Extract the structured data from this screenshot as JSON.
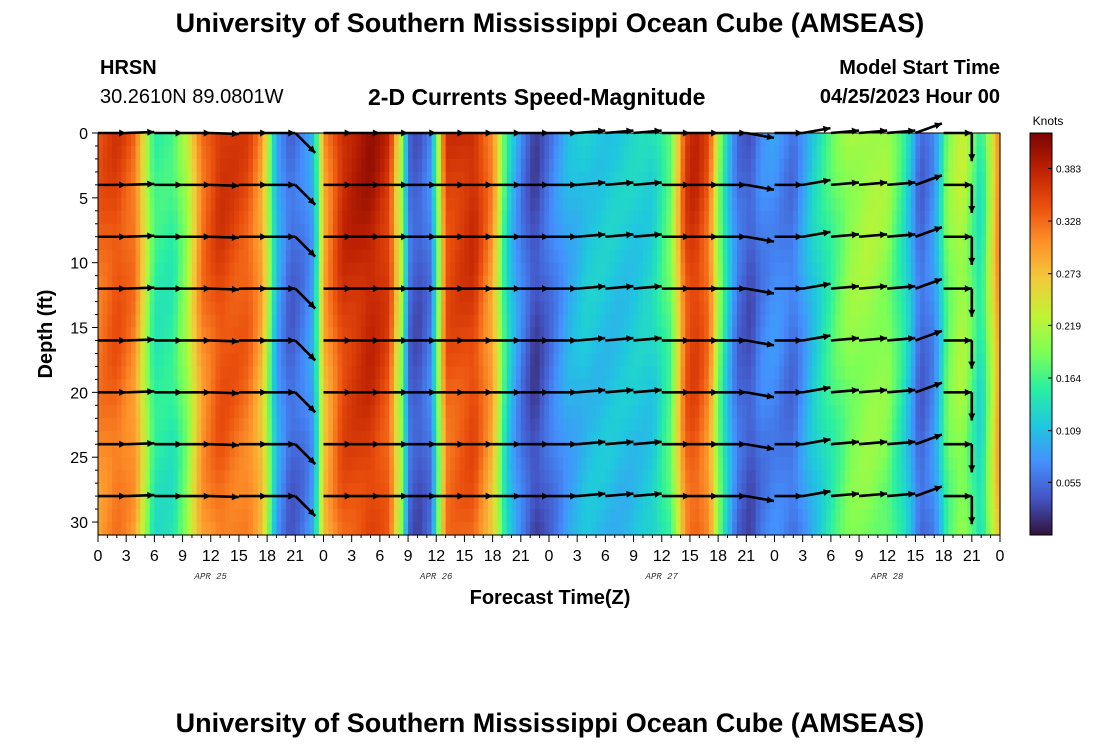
{
  "header": {
    "title": "University of Southern Mississippi Ocean Cube (AMSEAS)",
    "station": "HRSN",
    "coords": "30.2610N  89.0801W",
    "subtitle": "2-D Currents Speed-Magnitude",
    "model_start_label": "Model Start Time",
    "model_start": "04/25/2023 Hour 00"
  },
  "footer": {
    "title": "University of Southern Mississippi Ocean Cube (AMSEAS)"
  },
  "colors": {
    "scale": [
      "#30123b",
      "#4454c4",
      "#4490fe",
      "#1fc8de",
      "#29efa2",
      "#7dff56",
      "#c1f334",
      "#f1ca3a",
      "#fe922a",
      "#ea4f0d",
      "#be2102",
      "#7a0403"
    ]
  },
  "chart_data": {
    "type": "heatmap",
    "xlabel": "Forecast Time(Z)",
    "ylabel": "Depth (ft)",
    "x_range": [
      0,
      96
    ],
    "y_range": [
      0,
      31
    ],
    "x_tick_labels": [
      "0",
      "3",
      "6",
      "9",
      "12",
      "15",
      "18",
      "21",
      "0",
      "3",
      "6",
      "9",
      "12",
      "15",
      "18",
      "21",
      "0",
      "3",
      "6",
      "9",
      "12",
      "15",
      "18",
      "21",
      "0",
      "3",
      "6",
      "9",
      "12",
      "15",
      "18",
      "21",
      "0"
    ],
    "y_ticks": [
      0,
      5,
      10,
      15,
      20,
      25,
      30
    ],
    "y_tick_labels": [
      "0",
      "5",
      "10",
      "15",
      "20",
      "25",
      "30"
    ],
    "days": [
      {
        "label": "APR 25",
        "hour": 12
      },
      {
        "label": "APR 26",
        "hour": 36
      },
      {
        "label": "APR 27",
        "hour": 60
      },
      {
        "label": "APR 28",
        "hour": 84
      }
    ],
    "colorbar": {
      "title": "Knots",
      "tick_values": [
        0.383,
        0.328,
        0.273,
        0.219,
        0.164,
        0.109,
        0.055
      ],
      "tick_labels": [
        "0.383",
        "0.328",
        "0.273",
        "0.219",
        "0.164",
        "0.109",
        "0.055"
      ],
      "vmin": 0.0,
      "vmax": 0.42
    },
    "speed_profile": {
      "hours": [
        0,
        2,
        4,
        5,
        6,
        8,
        9.5,
        11,
        13,
        16,
        17.5,
        19,
        20.5,
        22,
        23,
        24,
        26,
        29,
        31,
        32.5,
        33,
        34,
        35.5,
        37,
        40,
        42,
        43.5,
        45,
        46.5,
        48,
        50,
        52,
        56,
        59,
        61,
        62.5,
        63.5,
        65,
        66.5,
        68,
        69.5,
        70.5,
        72,
        74,
        76,
        78,
        80,
        82,
        84,
        86,
        87.5,
        89,
        90.5,
        92,
        94,
        96
      ],
      "values": [
        0.34,
        0.36,
        0.33,
        0.24,
        0.16,
        0.16,
        0.22,
        0.33,
        0.37,
        0.35,
        0.3,
        0.1,
        0.05,
        0.07,
        0.1,
        0.3,
        0.38,
        0.4,
        0.37,
        0.19,
        0.06,
        0.04,
        0.07,
        0.36,
        0.38,
        0.31,
        0.14,
        0.07,
        0.03,
        0.06,
        0.1,
        0.12,
        0.12,
        0.13,
        0.19,
        0.36,
        0.38,
        0.34,
        0.16,
        0.06,
        0.04,
        0.07,
        0.08,
        0.06,
        0.12,
        0.17,
        0.21,
        0.22,
        0.21,
        0.14,
        0.05,
        0.08,
        0.2,
        0.23,
        0.14,
        0.33
      ]
    },
    "arrow_depths": [
      0,
      4,
      8,
      12,
      16,
      20,
      24,
      28
    ],
    "arrow_hours": [
      0,
      3,
      6,
      9,
      12,
      15,
      18,
      21,
      24,
      27,
      30,
      33,
      36,
      39,
      42,
      45,
      48,
      51,
      54,
      57,
      60,
      63,
      66,
      69,
      72,
      75,
      78,
      81,
      84,
      87,
      90,
      93,
      96
    ],
    "arrow_directions_deg": [
      0,
      2,
      0,
      0,
      -2,
      0,
      0,
      -45,
      0,
      0,
      0,
      0,
      0,
      0,
      0,
      0,
      0,
      5,
      5,
      5,
      0,
      0,
      0,
      -10,
      0,
      10,
      5,
      5,
      5,
      20,
      0,
      -90,
      0
    ]
  }
}
